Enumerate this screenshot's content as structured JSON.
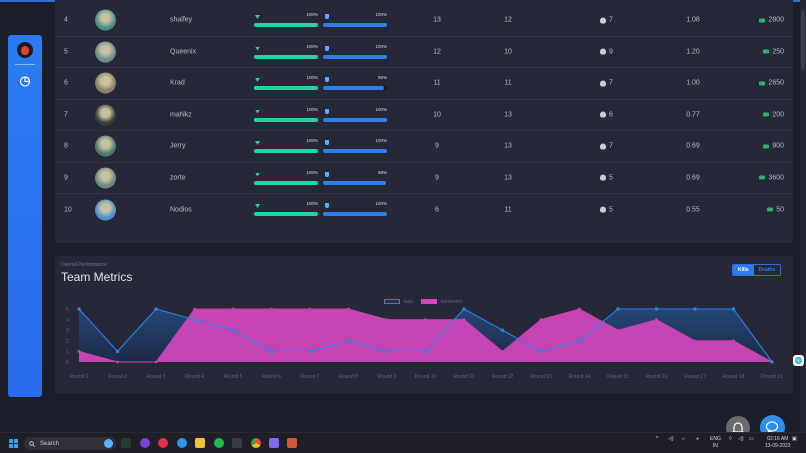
{
  "sidebar": {
    "items": [
      {
        "icon": "team-logo-icon"
      },
      {
        "icon": "pie-chart-icon"
      }
    ]
  },
  "table": {
    "rows": [
      {
        "rank": "4",
        "name": "shalfey",
        "hp_pct": "100%",
        "hp": 100,
        "armor_pct": "100%",
        "armor": 100,
        "kills": "13",
        "deaths": "12",
        "skulls": "7",
        "kd": "1.08",
        "money": "2800",
        "avatar_color": "#4a8f86"
      },
      {
        "rank": "5",
        "name": "Queenix",
        "hp_pct": "100%",
        "hp": 100,
        "armor_pct": "100%",
        "armor": 100,
        "kills": "12",
        "deaths": "10",
        "skulls": "9",
        "kd": "1.20",
        "money": "250",
        "avatar_color": "#6f8b8a"
      },
      {
        "rank": "6",
        "name": "Krad",
        "hp_pct": "100%",
        "hp": 100,
        "armor_pct": "95%",
        "armor": 95,
        "kills": "11",
        "deaths": "11",
        "skulls": "7",
        "kd": "1.00",
        "money": "2650",
        "avatar_color": "#8a8165"
      },
      {
        "rank": "7",
        "name": "maNkz",
        "hp_pct": "100%",
        "hp": 100,
        "armor_pct": "100%",
        "armor": 100,
        "kills": "10",
        "deaths": "13",
        "skulls": "6",
        "kd": "0.77",
        "money": "200",
        "avatar_color": "#3b3d3c"
      },
      {
        "rank": "8",
        "name": "Jerry",
        "hp_pct": "100%",
        "hp": 100,
        "armor_pct": "100%",
        "armor": 100,
        "kills": "9",
        "deaths": "13",
        "skulls": "7",
        "kd": "0.69",
        "money": "900",
        "avatar_color": "#4d7a73"
      },
      {
        "rank": "9",
        "name": "zorte",
        "hp_pct": "100%",
        "hp": 100,
        "armor_pct": "98%",
        "armor": 98,
        "kills": "9",
        "deaths": "13",
        "skulls": "5",
        "kd": "0.69",
        "money": "3600",
        "avatar_color": "#6e8684"
      },
      {
        "rank": "10",
        "name": "Nodios",
        "hp_pct": "100%",
        "hp": 100,
        "armor_pct": "100%",
        "armor": 100,
        "kills": "6",
        "deaths": "11",
        "skulls": "5",
        "kd": "0.55",
        "money": "50",
        "avatar_color": "#4c8fd0"
      }
    ]
  },
  "chart_section": {
    "subtitle": "Overall Performance",
    "title": "Team Metrics",
    "toggle": {
      "kills": "Kills",
      "deaths": "Deaths",
      "active": "Kills"
    }
  },
  "chart_data": {
    "type": "area",
    "title": "Team Metrics",
    "subtitle": "Overall Performance",
    "xlabel": "",
    "ylabel": "",
    "ylim": [
      0,
      5
    ],
    "yticks": [
      0,
      1,
      2,
      3,
      4,
      5
    ],
    "grid": false,
    "legend_position": "top",
    "categories": [
      "Round 1",
      "Round 2",
      "Round 3",
      "Round 4",
      "Round 5",
      "Round 6",
      "Round 7",
      "Round 8",
      "Round 9",
      "Round 10",
      "Round 11",
      "Round 12",
      "Round 13",
      "Round 14",
      "Round 15",
      "Round 16",
      "Round 17",
      "Round 18",
      "Round 19"
    ],
    "series": [
      {
        "name": "faZe",
        "color": "#2d80ea",
        "values": [
          5,
          1,
          5,
          4,
          3,
          1,
          1,
          2,
          1,
          1,
          5,
          3,
          1,
          2,
          5,
          5,
          5,
          5,
          0
        ]
      },
      {
        "name": "ECSTATIC",
        "color": "#d346bd",
        "values": [
          1,
          0,
          0,
          5,
          5,
          5,
          5,
          5,
          4,
          4,
          4,
          1,
          4,
          5,
          3,
          4,
          2,
          2,
          0
        ]
      }
    ]
  },
  "taskbar": {
    "search_placeholder": "Search",
    "lang_line1": "ENG",
    "lang_line2": "IN",
    "time": "02:16 AM",
    "date": "13-09-2023"
  },
  "colors": {
    "accent": "#2d7af0",
    "hp": "#1fd6a0",
    "armor": "#2d80ea",
    "panel": "#262838",
    "background": "#1b1d2a"
  }
}
